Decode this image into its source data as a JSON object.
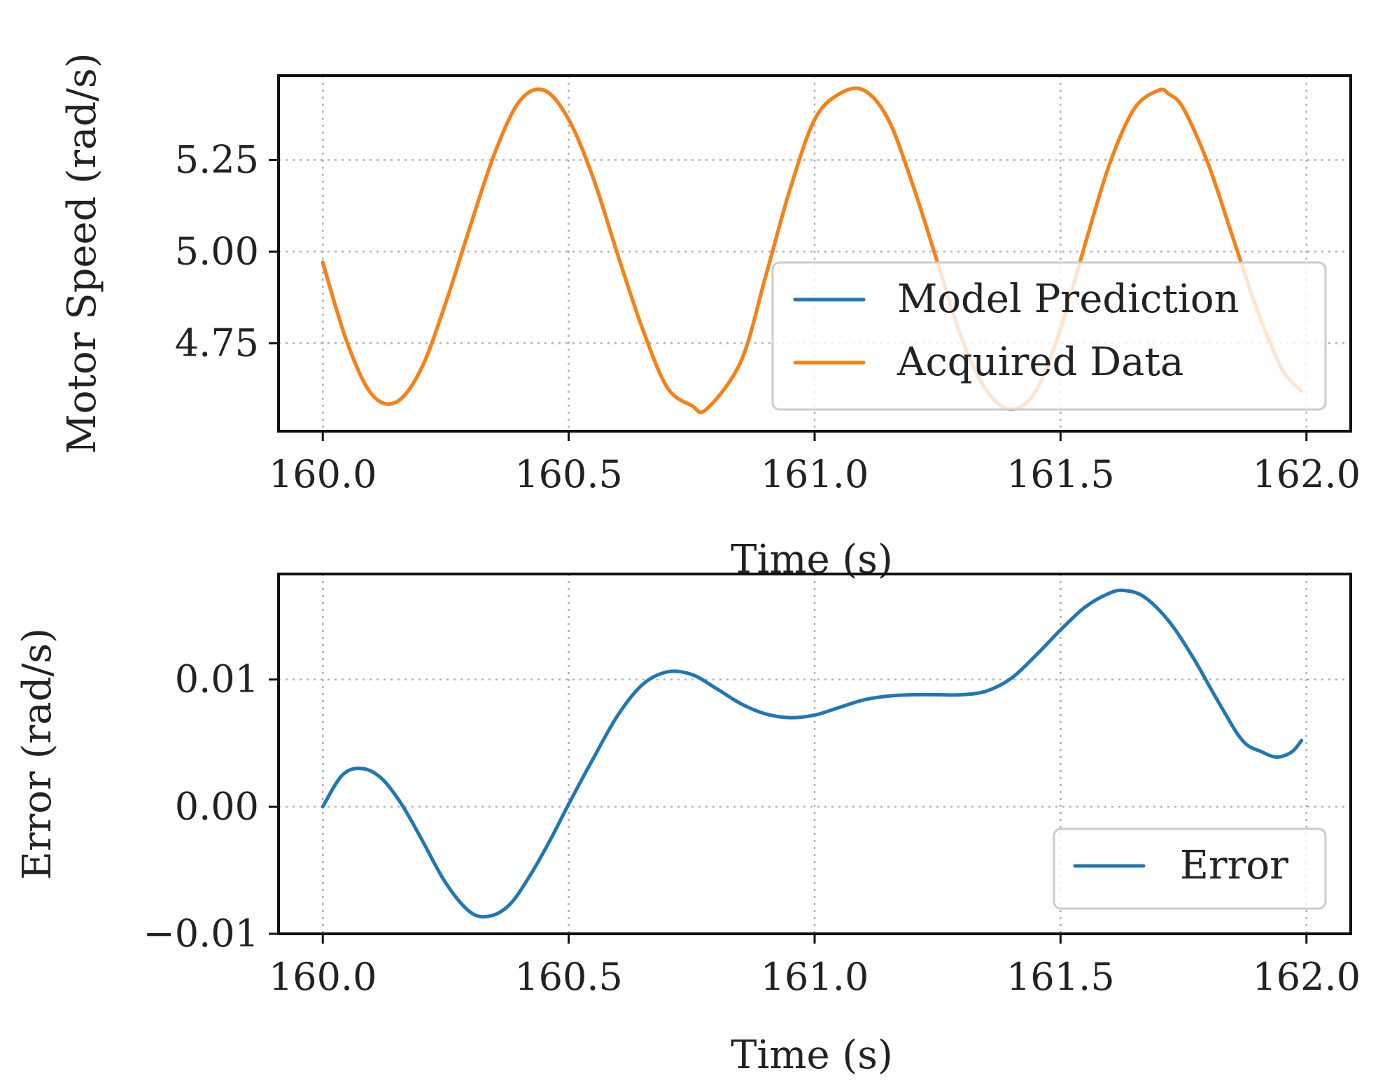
{
  "chart_data": [
    {
      "type": "line",
      "title": "",
      "xlabel": "Time (s)",
      "ylabel": "Motor Speed (rad/s)",
      "xlim": [
        159.91,
        162.09
      ],
      "ylim": [
        4.51,
        5.48
      ],
      "xticks": [
        160.0,
        160.5,
        161.0,
        161.5,
        162.0
      ],
      "xtick_labels": [
        "160.0",
        "160.5",
        "161.0",
        "161.5",
        "162.0"
      ],
      "yticks": [
        4.75,
        5.0,
        5.25
      ],
      "ytick_labels": [
        "4.75",
        "5.00",
        "5.25"
      ],
      "grid": true,
      "legend_position": "lower-right",
      "series": [
        {
          "name": "Model Prediction",
          "color": "#1f77b4",
          "x": [
            160.0,
            160.05,
            160.1,
            160.15,
            160.2,
            160.25,
            160.3,
            160.35,
            160.4,
            160.45,
            160.5,
            160.55,
            160.6,
            160.65,
            160.7,
            160.75,
            160.78,
            160.85,
            160.9,
            160.95,
            161.0,
            161.05,
            161.1,
            161.15,
            161.2,
            161.25,
            161.3,
            161.35,
            161.4,
            161.45,
            161.5,
            161.55,
            161.6,
            161.65,
            161.7,
            161.72,
            161.75,
            161.8,
            161.85,
            161.9,
            161.95,
            161.99
          ],
          "y": [
            4.97,
            4.75,
            4.61,
            4.59,
            4.68,
            4.86,
            5.07,
            5.27,
            5.41,
            5.44,
            5.36,
            5.2,
            4.99,
            4.79,
            4.63,
            4.58,
            4.57,
            4.7,
            4.93,
            5.17,
            5.36,
            5.43,
            5.44,
            5.36,
            5.18,
            4.97,
            4.76,
            4.62,
            4.57,
            4.62,
            4.79,
            5.02,
            5.24,
            5.39,
            5.44,
            5.43,
            5.39,
            5.24,
            5.04,
            4.84,
            4.68,
            4.62
          ]
        },
        {
          "name": "Acquired Data",
          "color": "#ff7f0e",
          "x": [
            160.0,
            160.05,
            160.1,
            160.15,
            160.2,
            160.25,
            160.3,
            160.35,
            160.4,
            160.45,
            160.5,
            160.55,
            160.6,
            160.65,
            160.7,
            160.75,
            160.78,
            160.85,
            160.9,
            160.95,
            161.0,
            161.05,
            161.1,
            161.15,
            161.2,
            161.25,
            161.3,
            161.35,
            161.4,
            161.45,
            161.5,
            161.55,
            161.6,
            161.65,
            161.7,
            161.72,
            161.75,
            161.8,
            161.85,
            161.9,
            161.95,
            161.99
          ],
          "y": [
            4.97,
            4.75,
            4.61,
            4.59,
            4.68,
            4.86,
            5.07,
            5.27,
            5.41,
            5.44,
            5.36,
            5.2,
            4.99,
            4.79,
            4.63,
            4.58,
            4.57,
            4.7,
            4.93,
            5.17,
            5.36,
            5.43,
            5.44,
            5.36,
            5.18,
            4.97,
            4.76,
            4.62,
            4.57,
            4.62,
            4.79,
            5.02,
            5.24,
            5.39,
            5.44,
            5.43,
            5.39,
            5.24,
            5.04,
            4.84,
            4.68,
            4.62
          ]
        }
      ]
    },
    {
      "type": "line",
      "title": "",
      "xlabel": "Time (s)",
      "ylabel": "Error (rad/s)",
      "xlim": [
        159.91,
        162.09
      ],
      "ylim": [
        -0.01,
        0.0183
      ],
      "xticks": [
        160.0,
        160.5,
        161.0,
        161.5,
        162.0
      ],
      "xtick_labels": [
        "160.0",
        "160.5",
        "161.0",
        "161.5",
        "162.0"
      ],
      "yticks": [
        -0.01,
        0.0,
        0.01
      ],
      "ytick_labels": [
        "−0.01",
        "0.00",
        "0.01"
      ],
      "grid": true,
      "legend_position": "lower-right",
      "series": [
        {
          "name": "Error",
          "color": "#1f77b4",
          "x": [
            160.0,
            160.04,
            160.08,
            160.12,
            160.16,
            160.2,
            160.25,
            160.3,
            160.34,
            160.38,
            160.42,
            160.46,
            160.5,
            160.55,
            160.6,
            160.65,
            160.7,
            160.75,
            160.8,
            160.85,
            160.9,
            160.95,
            161.0,
            161.05,
            161.1,
            161.15,
            161.2,
            161.25,
            161.3,
            161.35,
            161.4,
            161.45,
            161.5,
            161.55,
            161.6,
            161.63,
            161.67,
            161.72,
            161.77,
            161.82,
            161.87,
            161.91,
            161.94,
            161.97,
            161.99
          ],
          "y": [
            0.0,
            0.0025,
            0.003,
            0.0022,
            0.0002,
            -0.0025,
            -0.006,
            -0.0083,
            -0.0086,
            -0.0077,
            -0.0055,
            -0.0028,
            0.0002,
            0.0038,
            0.0072,
            0.0096,
            0.0106,
            0.0104,
            0.0093,
            0.0081,
            0.0073,
            0.007,
            0.0072,
            0.0078,
            0.0084,
            0.0087,
            0.0088,
            0.0088,
            0.0088,
            0.0091,
            0.0101,
            0.0119,
            0.0139,
            0.0157,
            0.0168,
            0.017,
            0.0165,
            0.0146,
            0.0117,
            0.0083,
            0.0052,
            0.0043,
            0.0039,
            0.0043,
            0.0052
          ]
        }
      ]
    }
  ]
}
